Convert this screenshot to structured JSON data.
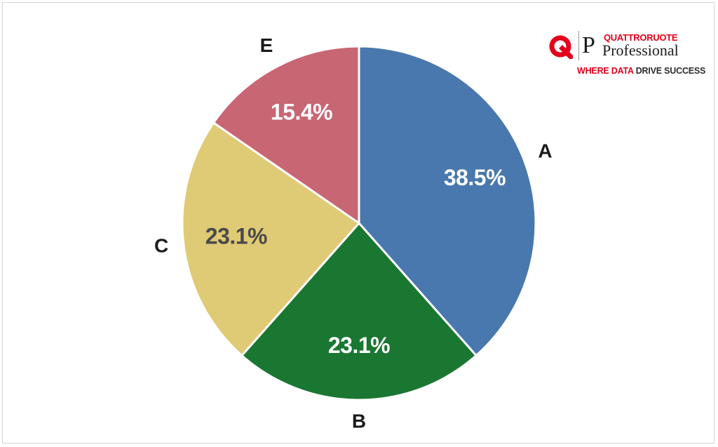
{
  "chart_data": {
    "type": "pie",
    "title": "",
    "slices": [
      {
        "label": "A",
        "value": 38.5,
        "display": "38.5%",
        "color": "#4878ad",
        "label_color": "#ffffff"
      },
      {
        "label": "B",
        "value": 23.1,
        "display": "23.1%",
        "color": "#1a7732",
        "label_color": "#ffffff"
      },
      {
        "label": "C",
        "value": 23.1,
        "display": "23.1%",
        "color": "#dfca75",
        "label_color": "#4a4a4a"
      },
      {
        "label": "E",
        "value": 15.4,
        "display": "15.4%",
        "color": "#c86674",
        "label_color": "#ffffff"
      }
    ],
    "start_angle": "12 o'clock",
    "direction": "clockwise",
    "legend": "none"
  },
  "logo": {
    "q_icon": "q-logo-icon",
    "p_glyph": "P",
    "brand": "QUATTRORUOTE",
    "product": "Professional",
    "tagline_red": "WHERE DATA",
    "tagline_dark": "DRIVE SUCCESS",
    "color": "#e2001a"
  }
}
